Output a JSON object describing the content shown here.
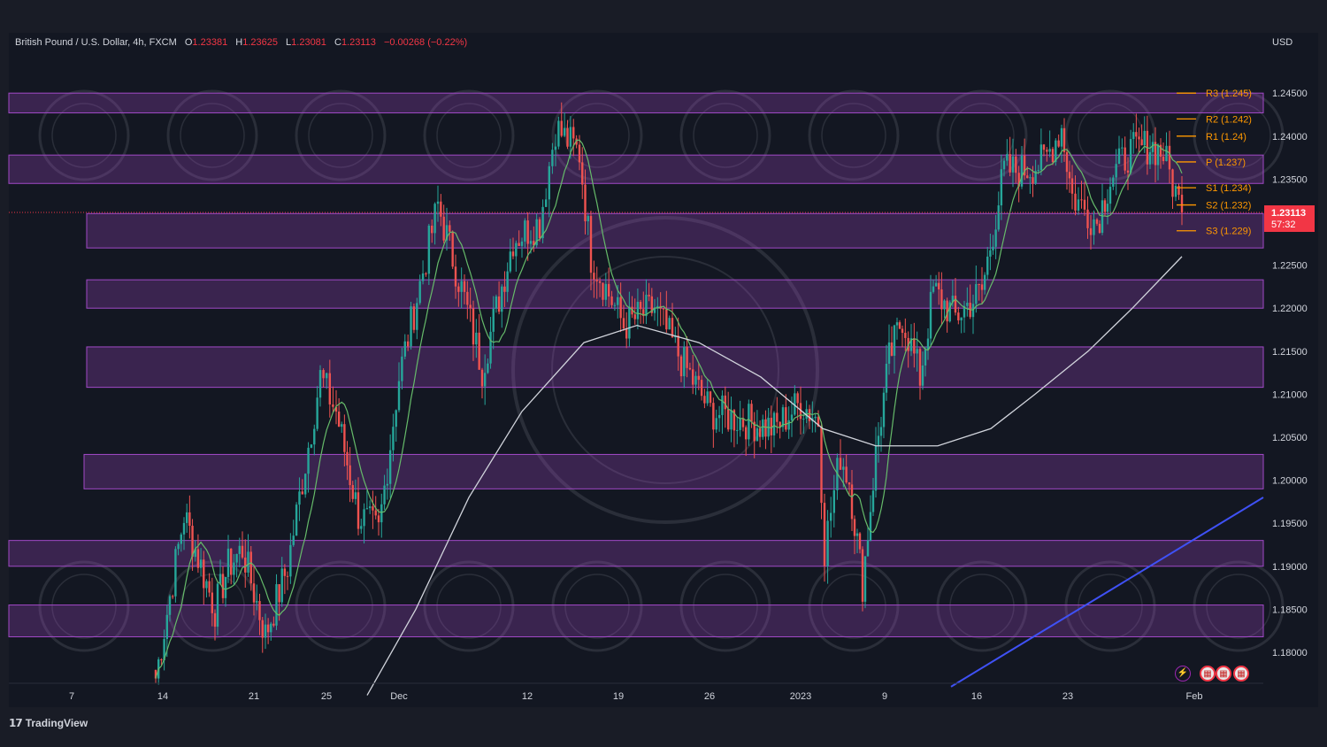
{
  "header": {
    "symbol": "British Pound / U.S. Dollar, 4h, FXCM",
    "open_label": "O",
    "open": "1.23381",
    "high_label": "H",
    "high": "1.23625",
    "low_label": "L",
    "low": "1.23081",
    "close_label": "C",
    "close": "1.23113",
    "change": "−0.00268 (−0.22%)",
    "currency": "USD"
  },
  "price_tag": {
    "price": "1.23113",
    "countdown": "57:32"
  },
  "footer": {
    "brand": "TradingView"
  },
  "colors": {
    "background": "#131722",
    "up": "#26a69a",
    "down": "#ef5350",
    "zone": "#a149c7",
    "pivot": "#ff9800",
    "ma_fast": "#66bb6a",
    "ma_slow": "#d1d4dc",
    "trendline": "#3f51f5",
    "price_tag": "#f23645"
  },
  "chart_data": {
    "type": "candlestick",
    "title": "British Pound / U.S. Dollar, 4h, FXCM",
    "ylim": [
      1.176,
      1.2545
    ],
    "y_ticks": [
      "1.18000",
      "1.18500",
      "1.19000",
      "1.19500",
      "1.20000",
      "1.20500",
      "1.21000",
      "1.21500",
      "1.22000",
      "1.22500",
      "1.23000",
      "1.23500",
      "1.24000",
      "1.24500"
    ],
    "x_ticks": [
      "7",
      "14",
      "21",
      "25",
      "Dec",
      "12",
      "19",
      "26",
      "2023",
      "9",
      "16",
      "23",
      "Feb"
    ],
    "pivots": [
      {
        "label": "R3 (1.245)",
        "value": 1.245
      },
      {
        "label": "R2 (1.242)",
        "value": 1.242
      },
      {
        "label": "R1 (1.24)",
        "value": 1.24
      },
      {
        "label": "P (1.237)",
        "value": 1.237
      },
      {
        "label": "S1 (1.234)",
        "value": 1.234
      },
      {
        "label": "S2 (1.232)",
        "value": 1.232
      },
      {
        "label": "S3 (1.229)",
        "value": 1.229
      }
    ],
    "zones": [
      {
        "low": 1.2427,
        "high": 1.245
      },
      {
        "low": 1.2345,
        "high": 1.2378
      },
      {
        "low": 1.227,
        "high": 1.231
      },
      {
        "low": 1.22,
        "high": 1.2233
      },
      {
        "low": 1.2108,
        "high": 1.2155
      },
      {
        "low": 1.199,
        "high": 1.203
      },
      {
        "low": 1.19,
        "high": 1.193
      },
      {
        "low": 1.1818,
        "high": 1.1855
      }
    ],
    "price_anchors": [
      [
        "14",
        1.177
      ],
      [
        "16",
        1.196
      ],
      [
        "18",
        1.185
      ],
      [
        "19",
        1.19
      ],
      [
        "20",
        1.192
      ],
      [
        "21",
        1.182
      ],
      [
        "23",
        1.19
      ],
      [
        "25",
        1.212
      ],
      [
        "26",
        1.208
      ],
      [
        "28",
        1.196
      ],
      [
        "29",
        1.194
      ],
      [
        "Dec",
        1.212
      ],
      [
        "5",
        1.232
      ],
      [
        "7",
        1.221
      ],
      [
        "9",
        1.213
      ],
      [
        "11",
        1.228
      ],
      [
        "12",
        1.23
      ],
      [
        "13",
        1.241
      ],
      [
        "15",
        1.238
      ],
      [
        "16",
        1.226
      ],
      [
        "17",
        1.218
      ],
      [
        "19",
        1.22
      ],
      [
        "21",
        1.214
      ],
      [
        "23",
        1.208
      ],
      [
        "26",
        1.207
      ],
      [
        "28",
        1.206
      ],
      [
        "30",
        1.209
      ],
      [
        "2023",
        1.207
      ],
      [
        "3",
        1.192
      ],
      [
        "4",
        1.203
      ],
      [
        "5",
        1.2
      ],
      [
        "6",
        1.188
      ],
      [
        "7",
        1.203
      ],
      [
        "9",
        1.214
      ],
      [
        "11",
        1.219
      ],
      [
        "13",
        1.212
      ],
      [
        "14",
        1.222
      ],
      [
        "16",
        1.219
      ],
      [
        "18",
        1.222
      ],
      [
        "19",
        1.236
      ],
      [
        "20",
        1.236
      ],
      [
        "21",
        1.237
      ],
      [
        "23",
        1.241
      ],
      [
        "24",
        1.233
      ],
      [
        "25",
        1.23
      ],
      [
        "26",
        1.235
      ],
      [
        "27",
        1.238
      ],
      [
        "29",
        1.239
      ],
      [
        "30",
        1.238
      ],
      [
        "31",
        1.2311
      ]
    ],
    "moving_average_slow": [
      [
        "Nov 30",
        1.175
      ],
      [
        "Dec 5",
        1.185
      ],
      [
        "Dec 10",
        1.198
      ],
      [
        "Dec 15",
        1.208
      ],
      [
        "Dec 20",
        1.216
      ],
      [
        "Dec 24",
        1.218
      ],
      [
        "Dec 29",
        1.216
      ],
      [
        "Jan 3",
        1.212
      ],
      [
        "Jan 6",
        1.206
      ],
      [
        "Jan 9",
        1.204
      ],
      [
        "Jan 13",
        1.204
      ],
      [
        "Jan 18",
        1.206
      ],
      [
        "Jan 21",
        1.21
      ],
      [
        "Jan 25",
        1.215
      ],
      [
        "Jan 28",
        1.22
      ],
      [
        "Jan 31",
        1.226
      ]
    ],
    "trendline": [
      [
        "Jan 13",
        1.176
      ],
      [
        "Feb 3",
        1.198
      ]
    ]
  }
}
